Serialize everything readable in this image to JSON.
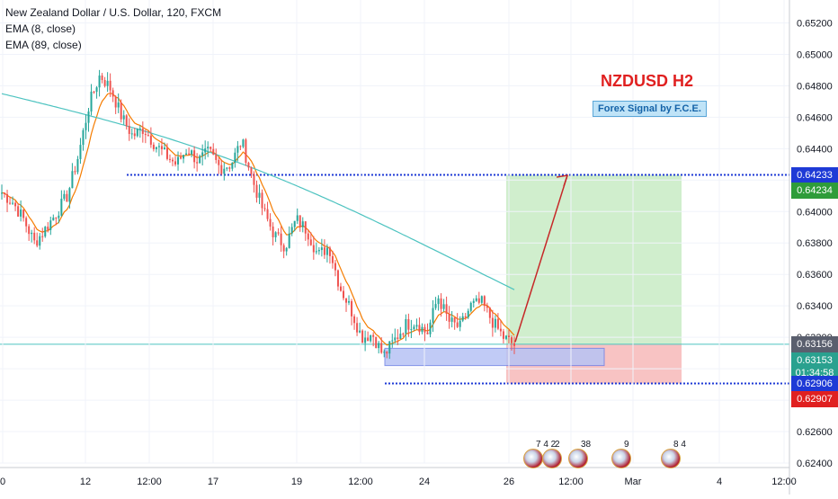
{
  "legend": {
    "symbol": "New Zealand Dollar / U.S. Dollar, 120, FXCM",
    "ema_fast": "EMA (8, close)",
    "ema_slow": "EMA (89, close)"
  },
  "overlay": {
    "title": "NZDUSD H2",
    "signal": "Forex Signal by F.C.E."
  },
  "price_tags": [
    {
      "text": "0.64233",
      "bg": "#1e3ad6"
    },
    {
      "text": "0.64234",
      "bg": "#2e9c3a"
    },
    {
      "text": "0.63156",
      "bg": "#5a5f6e"
    },
    {
      "text": "0.63153",
      "bg": "#2aa18f"
    },
    {
      "text": "01:34:58",
      "bg": "#2aa18f"
    },
    {
      "text": "0.62906",
      "bg": "#1e3ad6"
    },
    {
      "text": "0.62907",
      "bg": "#e02020"
    }
  ],
  "events": [
    {
      "label": "7 4 2"
    },
    {
      "label": "2"
    },
    {
      "label": "38"
    },
    {
      "label": "9"
    },
    {
      "label": "8  4"
    }
  ],
  "colors": {
    "bull": "#26a69a",
    "bear": "#ef5350",
    "ema_fast": "#f57c00",
    "ema_slow": "#4dc3c0",
    "target_line": "#1e3ad6",
    "arrow": "#c62828",
    "profit_zone": "#c8ebc4",
    "loss_zone": "#f7b9b9",
    "entry_box": "#b7c3f5"
  },
  "chart_data": {
    "type": "candlestick",
    "symbol": "NZDUSD",
    "timeframe": "120",
    "ylim": [
      0.624,
      0.653
    ],
    "y_ticks": [
      "0.65200",
      "0.65000",
      "0.64800",
      "0.64600",
      "0.64400",
      "0.64200",
      "0.64000",
      "0.63800",
      "0.63600",
      "0.63400",
      "0.63200",
      "0.63000",
      "0.62800",
      "0.62600",
      "0.62400"
    ],
    "x_ticks": [
      "0",
      "12",
      "12:00",
      "17",
      "19",
      "12:00",
      "24",
      "26",
      "12:00",
      "Mar",
      "4",
      "12:00"
    ],
    "levels": {
      "target": 0.64233,
      "entry": 0.63156,
      "current": 0.63153,
      "stop": 0.62906
    },
    "anchors": [
      0.6412,
      0.6406,
      0.6395,
      0.638,
      0.6389,
      0.6399,
      0.641,
      0.6435,
      0.6468,
      0.6487,
      0.6478,
      0.646,
      0.6448,
      0.6453,
      0.6443,
      0.6436,
      0.643,
      0.644,
      0.6432,
      0.6438,
      0.6428,
      0.643,
      0.6445,
      0.642,
      0.64,
      0.6385,
      0.6378,
      0.6395,
      0.6388,
      0.6372,
      0.6378,
      0.6352,
      0.6338,
      0.632,
      0.6322,
      0.6308,
      0.6318,
      0.6328,
      0.633,
      0.6322,
      0.6346,
      0.633,
      0.6326,
      0.634,
      0.6342,
      0.633,
      0.632,
      0.6315
    ],
    "ema_slow_start": 0.6475,
    "ema_slow_end": 0.636
  }
}
